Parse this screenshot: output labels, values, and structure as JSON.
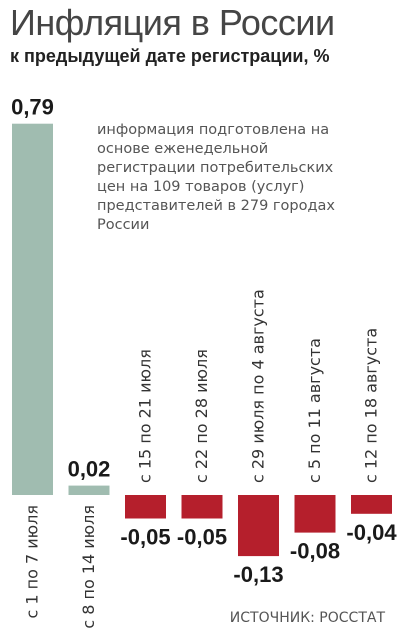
{
  "title": "Инфляция в России",
  "subtitle": "к предыдущей дате регистрации, %",
  "note": "информация подготовлена на основе еженедельной регистрации потребительских цен на 109 товаров (услуг) представителей в 279 городах России",
  "source": "ИСТОЧНИК: РОССТАТ",
  "colors": {
    "positive": "#a0bcb0",
    "negative": "#b51f2c"
  },
  "chart_data": {
    "type": "bar",
    "title": "Инфляция в России",
    "subtitle": "к предыдущей дате регистрации, %",
    "categories": [
      "с 1 по 7 июля",
      "с 8 по 14 июля",
      "с 15 по 21 июля",
      "с 22 по 28 июля",
      "с 29 июля по 4 августа",
      "с 5 по 11 августа",
      "с 12 по 18 августа"
    ],
    "values": [
      0.79,
      0.02,
      -0.05,
      -0.05,
      -0.13,
      -0.08,
      -0.04
    ],
    "value_labels": [
      "0,79",
      "0,02",
      "-0,05",
      "-0,05",
      "-0,13",
      "-0,08",
      "-0,04"
    ],
    "grid": false,
    "legend": "none"
  }
}
